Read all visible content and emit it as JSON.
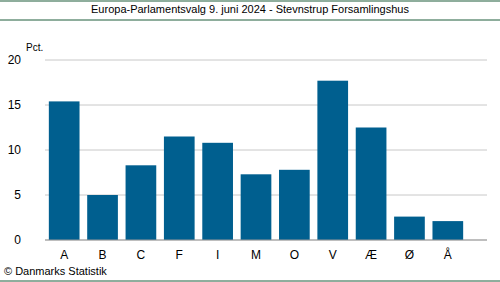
{
  "chart_data": {
    "type": "bar",
    "title": "Europa-Parlamentsvalg 9. juni 2024 - Stevnstrup Forsamlingshus",
    "y_label": "Pct.",
    "source": "© Danmarks Statistik",
    "categories": [
      "A",
      "B",
      "C",
      "F",
      "I",
      "M",
      "O",
      "V",
      "Æ",
      "Ø",
      "Å"
    ],
    "values": [
      15.4,
      5.0,
      8.3,
      11.5,
      10.8,
      7.3,
      7.8,
      17.7,
      12.5,
      2.6,
      2.1
    ],
    "color": "#005f8f",
    "ylim": [
      0,
      20
    ],
    "yticks": [
      0,
      5,
      10,
      15,
      20
    ],
    "grid": true
  }
}
